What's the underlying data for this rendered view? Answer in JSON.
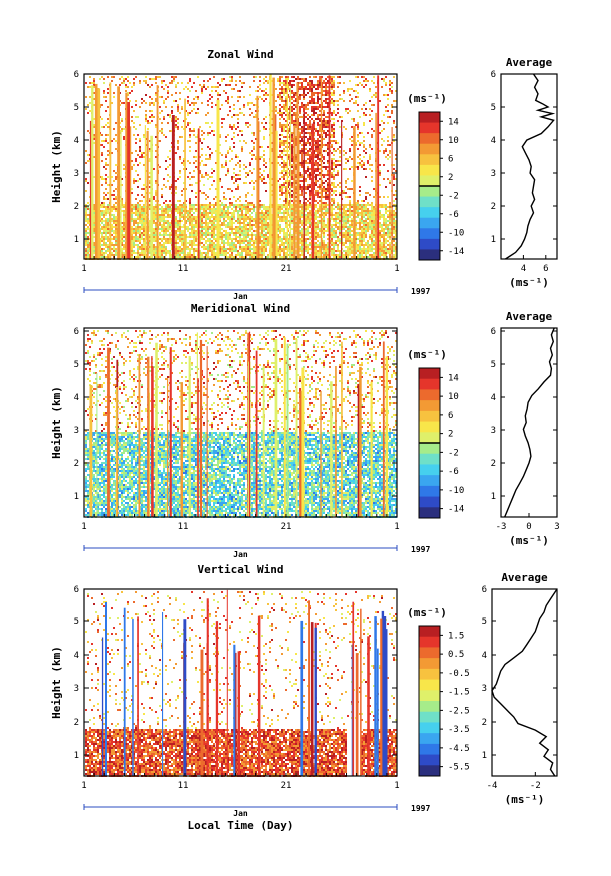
{
  "chart_data": [
    {
      "type": "heatmap",
      "title": "Zonal Wind",
      "xlabel": "",
      "ylabel": "Height (km)",
      "x_ticks": [
        "1",
        "11",
        "21",
        "1"
      ],
      "y_ticks": [
        "1",
        "2",
        "3",
        "4",
        "5",
        "6"
      ],
      "ylim": [
        0.4,
        6
      ],
      "xlim": [
        1,
        32
      ],
      "month_label": "Jan",
      "year_label": "1997",
      "colorbar": {
        "unit": "(ms⁻¹)",
        "ticks": [
          "14",
          "10",
          "6",
          "2",
          "-2",
          "-6",
          "-10",
          "-14"
        ],
        "range": [
          -16,
          16
        ],
        "contour_at": 0
      },
      "average": {
        "title": "Average",
        "xlabel": "(ms⁻¹)",
        "x_ticks": [
          "4",
          "6"
        ],
        "xlim": [
          2,
          7
        ],
        "y_ticks": [
          "1",
          "2",
          "3",
          "4",
          "5",
          "6"
        ],
        "heights": [
          0.4,
          0.6,
          0.8,
          1.0,
          1.2,
          1.4,
          1.6,
          1.8,
          2.0,
          2.2,
          2.4,
          2.6,
          2.8,
          3.0,
          3.2,
          3.4,
          3.6,
          3.8,
          4.0,
          4.2,
          4.4,
          4.6,
          4.7,
          4.8,
          4.9,
          5.0,
          5.1,
          5.2,
          5.4,
          5.6,
          5.8,
          6.0
        ],
        "values": [
          2.4,
          3.3,
          3.8,
          4.1,
          4.3,
          4.4,
          4.6,
          4.9,
          4.7,
          5.0,
          4.8,
          4.9,
          5.0,
          4.6,
          4.7,
          4.5,
          4.2,
          3.9,
          4.3,
          5.6,
          6.2,
          6.7,
          5.6,
          6.6,
          5.3,
          6.2,
          5.7,
          5.1,
          5.3,
          5.0,
          5.3,
          4.9
        ]
      }
    },
    {
      "type": "heatmap",
      "title": "Meridional Wind",
      "xlabel": "",
      "ylabel": "Height (km)",
      "x_ticks": [
        "1",
        "11",
        "21",
        "1"
      ],
      "y_ticks": [
        "1",
        "2",
        "3",
        "4",
        "5",
        "6"
      ],
      "ylim": [
        0.4,
        6
      ],
      "xlim": [
        1,
        32
      ],
      "month_label": "Jan",
      "year_label": "1997",
      "colorbar": {
        "unit": "(ms⁻¹)",
        "ticks": [
          "14",
          "10",
          "6",
          "2",
          "-2",
          "-6",
          "-10",
          "-14"
        ],
        "range": [
          -16,
          16
        ],
        "contour_at": 0
      },
      "average": {
        "title": "Average",
        "xlabel": "(ms⁻¹)",
        "x_ticks": [
          "-3",
          "0",
          "3"
        ],
        "xlim": [
          -3,
          3
        ],
        "y_ticks": [
          "1",
          "2",
          "3",
          "4",
          "5",
          "6"
        ],
        "heights": [
          0.4,
          0.6,
          0.8,
          1.0,
          1.2,
          1.4,
          1.6,
          1.8,
          2.0,
          2.2,
          2.4,
          2.6,
          2.8,
          3.0,
          3.2,
          3.4,
          3.6,
          3.8,
          4.0,
          4.2,
          4.4,
          4.6,
          4.8,
          5.0,
          5.2,
          5.4,
          5.6,
          5.8,
          6.0
        ],
        "values": [
          -2.6,
          -2.3,
          -2.0,
          -1.7,
          -1.4,
          -1.0,
          -0.6,
          -0.3,
          0.0,
          0.2,
          0.1,
          -0.1,
          -0.4,
          -0.6,
          -0.3,
          -0.4,
          -0.2,
          -0.1,
          0.3,
          1.0,
          1.6,
          2.3,
          2.4,
          2.2,
          2.5,
          2.3,
          2.6,
          2.4,
          2.7
        ]
      }
    },
    {
      "type": "heatmap",
      "title": "Vertical Wind",
      "xlabel": "Local Time (Day)",
      "ylabel": "Height (km)",
      "x_ticks": [
        "1",
        "11",
        "21",
        "1"
      ],
      "y_ticks": [
        "1",
        "2",
        "3",
        "4",
        "5",
        "6"
      ],
      "ylim": [
        0.3,
        6
      ],
      "xlim": [
        1,
        32
      ],
      "month_label": "Jan",
      "year_label": "1997",
      "colorbar": {
        "unit": "(ms⁻¹)",
        "ticks": [
          "1.5",
          "0.5",
          "-0.5",
          "-1.5",
          "-2.5",
          "-3.5",
          "-4.5",
          "-5.5"
        ],
        "range": [
          -6,
          2
        ]
      },
      "average": {
        "title": "Average",
        "xlabel": "(ms⁻¹)",
        "x_ticks": [
          "-4",
          "-2"
        ],
        "xlim": [
          -4,
          -1
        ],
        "y_ticks": [
          "1",
          "2",
          "3",
          "4",
          "5",
          "6"
        ],
        "heights": [
          0.3,
          0.5,
          0.7,
          0.9,
          1.1,
          1.3,
          1.5,
          1.7,
          1.9,
          2.1,
          2.3,
          2.5,
          2.7,
          2.9,
          3.1,
          3.3,
          3.5,
          3.7,
          3.9,
          4.1,
          4.3,
          4.5,
          4.7,
          4.9,
          5.1,
          5.3,
          5.5,
          5.7,
          6.0
        ],
        "values": [
          -1.1,
          -1.3,
          -1.2,
          -1.6,
          -1.4,
          -1.8,
          -1.5,
          -2.0,
          -2.8,
          -3.0,
          -3.3,
          -3.6,
          -3.9,
          -4.0,
          -3.8,
          -3.7,
          -3.6,
          -3.4,
          -3.0,
          -2.6,
          -2.4,
          -2.2,
          -2.0,
          -1.9,
          -1.8,
          -1.6,
          -1.5,
          -1.3,
          -1.0
        ]
      }
    }
  ]
}
